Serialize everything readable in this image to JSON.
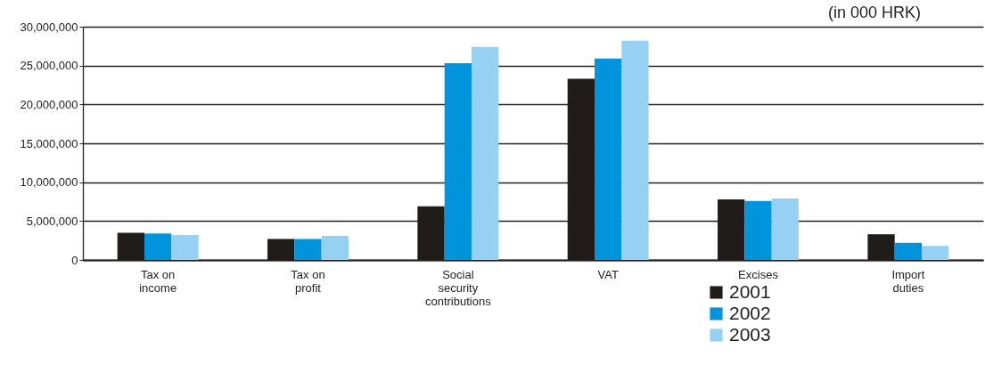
{
  "chart_data": {
    "type": "bar",
    "annotations": [
      "(in 000 HRK)"
    ],
    "categories": [
      "Tax on income",
      "Tax on profit",
      "Social security contributions",
      "VAT",
      "Excises",
      "Import duties"
    ],
    "series": [
      {
        "name": "2001",
        "color": "#201c19",
        "values": [
          3500000,
          2700000,
          6900000,
          23300000,
          7800000,
          3300000
        ]
      },
      {
        "name": "2002",
        "color": "#0094dc",
        "values": [
          3400000,
          2700000,
          25300000,
          25900000,
          7600000,
          2200000
        ]
      },
      {
        "name": "2003",
        "color": "#96d0f3",
        "values": [
          3200000,
          3100000,
          27400000,
          28200000,
          7900000,
          1800000
        ]
      }
    ],
    "ylim": [
      0,
      30000000
    ],
    "yticks": [
      0,
      {
        "value": 5000000,
        "label": "5,000,000"
      },
      {
        "value": 10000000,
        "label": "10,000,000"
      },
      {
        "value": 15000000,
        "label": "15,000,000"
      },
      {
        "value": 20000000,
        "label": "20,000,000"
      },
      {
        "value": 25000000,
        "label": "25,000,000"
      },
      {
        "value": 30000000,
        "label": "30,000,000"
      }
    ],
    "grid": "y",
    "legend": "bottom"
  }
}
